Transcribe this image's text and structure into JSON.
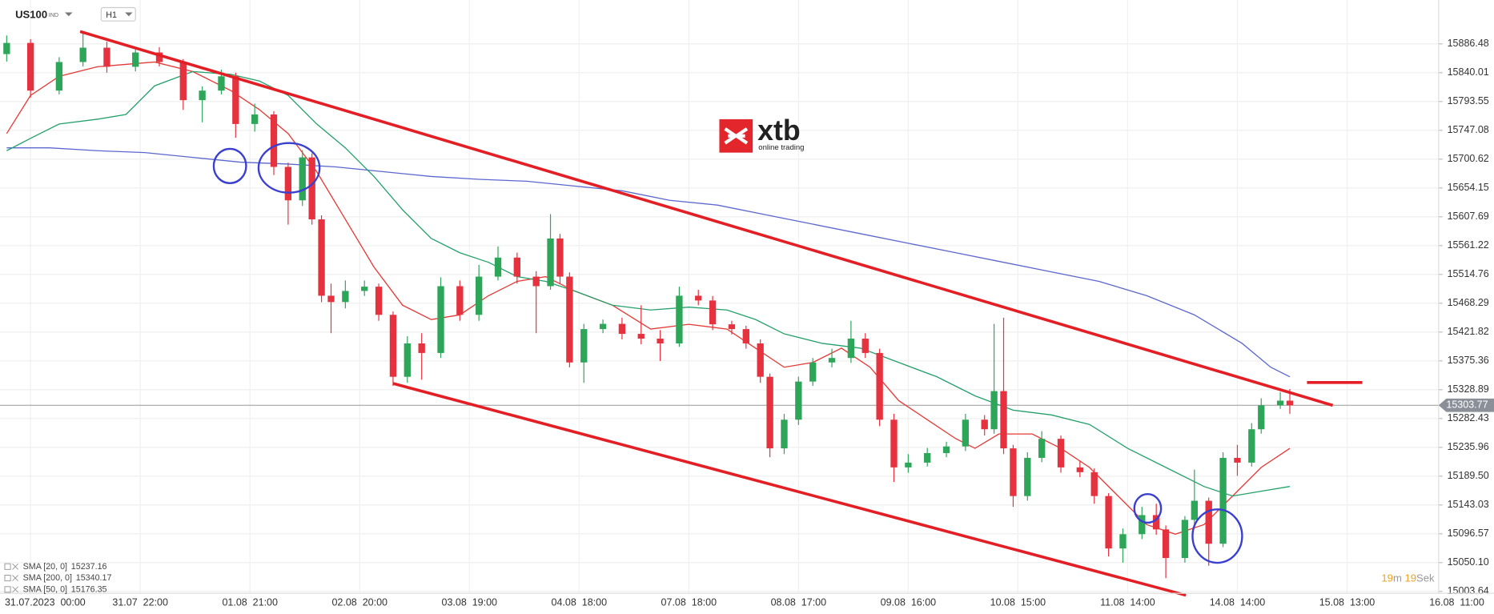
{
  "chart_data": {
    "type": "candlestick",
    "symbol": "US100",
    "symbol_tag": "IND",
    "timeframe": "H1",
    "brand": "xtb",
    "brand_tagline": "online trading",
    "up_color": "#2ea65a",
    "down_color": "#e5323e",
    "xlim": [
      -6.4,
      306.8
    ],
    "xticks": [
      {
        "value": 0,
        "label": "31.07.2023  00:00"
      },
      {
        "value": 23,
        "label": "31.07  22:00"
      },
      {
        "value": 46,
        "label": "01.08  21:00"
      },
      {
        "value": 69,
        "label": "02.08  20:00"
      },
      {
        "value": 92,
        "label": "03.08  19:00"
      },
      {
        "value": 115,
        "label": "04.08  18:00"
      },
      {
        "value": 138,
        "label": "07.08  18:00"
      },
      {
        "value": 161,
        "label": "08.08  17:00"
      },
      {
        "value": 184,
        "label": "09.08  16:00"
      },
      {
        "value": 207,
        "label": "10.08  15:00"
      },
      {
        "value": 230,
        "label": "11.08  14:00"
      },
      {
        "value": 253,
        "label": "14.08  14:00"
      },
      {
        "value": 276,
        "label": "15.08  13:00"
      },
      {
        "value": 299,
        "label": "16.08  11:00"
      }
    ],
    "ylim": [
      15000.6,
      15957.2
    ],
    "yticks": [
      15886.48,
      15840.01,
      15793.55,
      15747.08,
      15700.62,
      15654.15,
      15607.69,
      15561.22,
      15514.76,
      15468.29,
      15421.82,
      15375.36,
      15328.89,
      15282.43,
      15235.96,
      {
        "value": 15189.5,
        "label": "15189.50"
      },
      15143.03,
      15096.57,
      {
        "value": 15050.1,
        "label": "15050.10"
      },
      15003.64
    ],
    "grid": true,
    "candles": {
      "x": [
        -5,
        0,
        6,
        11,
        16,
        22,
        27,
        32,
        36,
        40,
        43,
        47,
        51,
        54,
        57,
        59,
        61,
        63,
        66,
        70,
        73,
        76,
        79,
        82,
        86,
        90,
        94,
        98,
        102,
        106,
        109,
        111,
        113,
        116,
        120,
        124,
        128,
        132,
        136,
        140,
        143,
        147,
        150,
        153,
        155,
        158,
        161,
        164,
        168,
        172,
        175,
        178,
        181,
        184,
        188,
        192,
        196,
        200,
        202,
        204,
        206,
        209,
        212,
        216,
        220,
        223,
        226,
        229,
        233,
        236,
        238,
        242,
        244,
        247,
        250,
        253,
        256,
        258,
        262,
        264
      ],
      "open": [
        15870.0,
        15888.0,
        15811.1,
        15857.2,
        15880.3,
        15849.5,
        15872.6,
        15857.2,
        15795.7,
        15811.1,
        15834.2,
        15757.3,
        15772.6,
        15688.1,
        15634.2,
        15703.4,
        15603.5,
        15480.4,
        15470.2,
        15488.1,
        15495.0,
        15449.6,
        15349.7,
        15403.5,
        15388.1,
        15495.8,
        15449.6,
        15511.2,
        15541.9,
        15511.2,
        15495.8,
        15572.7,
        15511.2,
        15372.8,
        15426.6,
        15435.0,
        15418.9,
        15411.2,
        15403.5,
        15480.4,
        15472.7,
        15434.3,
        15426.6,
        15403.5,
        15349.7,
        15234.3,
        15280.5,
        15342.0,
        15372.8,
        15380.0,
        15411.2,
        15388.1,
        15280.5,
        15203.6,
        15211.3,
        15226.7,
        15237.4,
        15280.5,
        15265.1,
        15326.6,
        15234.3,
        15157.4,
        15219.0,
        15249.7,
        15203.6,
        15195.9,
        15157.4,
        15072.9,
        15095.9,
        15126.7,
        15103.6,
        15057.5,
        15119.0,
        15149.8,
        15080.5,
        15219.0,
        15211.3,
        15265.1,
        15303.7,
        15311.2
      ],
      "high": [
        15900.0,
        15894.0,
        15865.0,
        15906.0,
        15890.0,
        15880.0,
        15881.0,
        15862.0,
        15818.0,
        15845.0,
        15840.0,
        15790.0,
        15778.0,
        15695.0,
        15715.0,
        15710.0,
        15610.0,
        15500.0,
        15505.0,
        15505.0,
        15500.0,
        15455.0,
        15415.0,
        15420.0,
        15510.0,
        15505.0,
        15530.0,
        15560.0,
        15550.0,
        15520.0,
        15612.0,
        15580.0,
        15518.0,
        15435.0,
        15442.0,
        15445.0,
        15465.0,
        15425.0,
        15495.0,
        15490.0,
        15480.0,
        15440.0,
        15432.0,
        15410.0,
        15355.0,
        15290.0,
        15350.0,
        15380.0,
        15395.0,
        15440.0,
        15420.0,
        15395.0,
        15290.0,
        15225.0,
        15235.0,
        15245.0,
        15290.0,
        15288.0,
        15435.0,
        15445.0,
        15240.0,
        15228.0,
        15262.0,
        15255.0,
        15215.0,
        15202.0,
        15162.0,
        15105.0,
        15140.0,
        15145.0,
        15110.0,
        15125.0,
        15200.0,
        15155.0,
        15228.0,
        15240.0,
        15275.0,
        15315.0,
        15325.0,
        15330.0
      ],
      "low": [
        15858.0,
        15800.0,
        15805.0,
        15850.0,
        15840.0,
        15842.0,
        15850.0,
        15780.0,
        15760.0,
        15805.0,
        15735.0,
        15745.0,
        15675.0,
        15595.0,
        15625.0,
        15595.0,
        15470.0,
        15420.0,
        15460.0,
        15480.0,
        15440.0,
        15335.0,
        15340.0,
        15345.0,
        15380.0,
        15440.0,
        15440.0,
        15505.0,
        15500.0,
        15420.0,
        15490.0,
        15500.0,
        15365.0,
        15340.0,
        15420.0,
        15410.0,
        15402.0,
        15375.0,
        15398.0,
        15465.0,
        15425.0,
        15418.0,
        15395.0,
        15340.0,
        15220.0,
        15225.0,
        15272.0,
        15335.0,
        15365.0,
        15372.0,
        15380.0,
        15270.0,
        15180.0,
        15195.0,
        15205.0,
        15220.0,
        15230.0,
        15255.0,
        15258.0,
        15225.0,
        15140.0,
        15150.0,
        15212.0,
        15195.0,
        15188.0,
        15145.0,
        15060.0,
        15050.0,
        15088.0,
        15095.0,
        15025.0,
        15050.0,
        15110.0,
        15045.0,
        15075.0,
        15190.0,
        15205.0,
        15258.0,
        15298.0,
        15290.0
      ],
      "close": [
        15888.0,
        15811.1,
        15857.2,
        15880.3,
        15849.5,
        15872.6,
        15857.2,
        15795.7,
        15811.1,
        15834.2,
        15757.3,
        15772.6,
        15688.1,
        15634.2,
        15703.4,
        15603.5,
        15480.4,
        15470.2,
        15488.1,
        15495.0,
        15449.6,
        15349.7,
        15403.5,
        15388.1,
        15495.8,
        15449.6,
        15511.2,
        15541.9,
        15511.2,
        15495.8,
        15572.7,
        15511.2,
        15372.8,
        15426.6,
        15435.0,
        15418.9,
        15411.2,
        15403.5,
        15480.4,
        15472.7,
        15434.3,
        15426.6,
        15403.5,
        15349.7,
        15234.3,
        15280.5,
        15342.0,
        15372.8,
        15380.0,
        15411.2,
        15388.1,
        15280.5,
        15203.6,
        15211.3,
        15226.7,
        15237.4,
        15280.5,
        15265.1,
        15326.6,
        15234.3,
        15157.4,
        15219.0,
        15249.7,
        15203.6,
        15195.9,
        15157.4,
        15072.9,
        15095.9,
        15126.7,
        15103.6,
        15057.5,
        15119.0,
        15149.8,
        15080.5,
        15219.0,
        15211.3,
        15265.1,
        15303.7,
        15311.2,
        15303.7
      ]
    },
    "series": [
      {
        "name": "SMA [20, 0]",
        "last": 15237.16,
        "color": "#e53935",
        "x": [
          -5,
          0,
          6,
          14,
          26,
          34,
          42,
          48,
          54,
          60,
          66,
          72,
          78,
          84,
          90,
          96,
          102,
          108,
          114,
          122,
          130,
          138,
          146,
          152,
          158,
          164,
          170,
          176,
          182,
          188,
          194,
          198,
          203,
          210,
          216,
          222,
          228,
          234,
          240,
          246,
          252,
          258,
          264
        ],
        "values": [
          15741.9,
          15803.4,
          15834.2,
          15849.5,
          15857.2,
          15841.8,
          15811.1,
          15780.3,
          15741.9,
          15680.4,
          15603.5,
          15526.6,
          15465.0,
          15442.0,
          15449.6,
          15480.4,
          15503.5,
          15511.2,
          15488.1,
          15465.0,
          15426.6,
          15434.3,
          15426.6,
          15395.8,
          15365.1,
          15372.8,
          15395.8,
          15365.1,
          15311.2,
          15280.5,
          15249.7,
          15234.3,
          15257.4,
          15257.4,
          15234.3,
          15203.6,
          15157.4,
          15111.3,
          15095.9,
          15111.3,
          15157.4,
          15203.6,
          15234.3
        ]
      },
      {
        "name": "SMA [200, 0]",
        "last": 15340.17,
        "color": "#5b67cf",
        "x": [
          -5,
          4,
          14,
          24,
          34,
          44,
          54,
          64,
          74,
          84,
          94,
          104,
          114,
          124,
          134,
          144,
          154,
          164,
          174,
          184,
          194,
          204,
          214,
          224,
          234,
          244,
          254,
          260,
          264
        ],
        "values": [
          15718.8,
          15718.8,
          15714.2,
          15711.1,
          15703.4,
          15695.7,
          15692.6,
          15688.1,
          15680.4,
          15672.7,
          15668.1,
          15665.0,
          15657.3,
          15649.6,
          15634.2,
          15626.5,
          15611.2,
          15595.8,
          15580.4,
          15565.0,
          15549.6,
          15534.2,
          15518.9,
          15503.5,
          15480.4,
          15449.6,
          15403.5,
          15365.1,
          15349.7
        ]
      },
      {
        "name": "SMA [50, 0]",
        "last": 15176.35,
        "color": "#25a06a",
        "x": [
          -5,
          0,
          6,
          14,
          20,
          26,
          34,
          42,
          48,
          54,
          60,
          66,
          72,
          78,
          84,
          90,
          96,
          102,
          108,
          114,
          122,
          130,
          138,
          146,
          152,
          158,
          166,
          174,
          182,
          190,
          198,
          206,
          214,
          222,
          230,
          238,
          246,
          252,
          258,
          264
        ],
        "values": [
          15714.2,
          15734.2,
          15757.3,
          15764.9,
          15772.6,
          15818.8,
          15841.8,
          15837.2,
          15826.5,
          15803.4,
          15757.3,
          15718.8,
          15672.7,
          15618.8,
          15572.7,
          15549.6,
          15534.2,
          15511.2,
          15503.5,
          15488.1,
          15465.0,
          15457.4,
          15462.0,
          15457.4,
          15442.0,
          15418.9,
          15403.5,
          15395.8,
          15372.8,
          15349.7,
          15319.0,
          15295.9,
          15288.2,
          15272.8,
          15234.3,
          15203.6,
          15172.8,
          15157.4,
          15165.1,
          15172.8
        ]
      }
    ],
    "trend_lines": [
      {
        "color": "#e31e24",
        "x": [
          10.4,
          273
        ],
        "values": [
          15906.4,
          15303.6
        ]
      },
      {
        "color": "#e31e24",
        "x": [
          76,
          242.2
        ],
        "values": [
          15338.9,
          14997.5
        ]
      },
      {
        "color": "#e31e24",
        "x": [
          267.6,
          279.2
        ],
        "values": [
          15340.5,
          15340.5
        ]
      }
    ],
    "current_price": 15303.77,
    "countdown": [
      "19",
      "m",
      "19",
      "Sek"
    ]
  }
}
